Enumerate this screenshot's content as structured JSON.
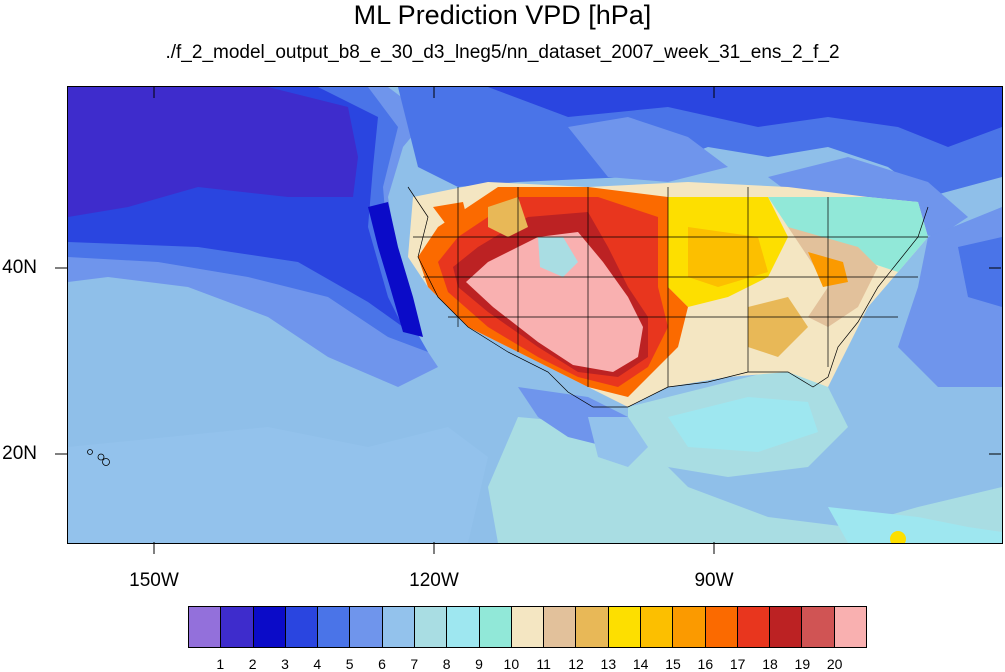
{
  "title": "ML Prediction VPD [hPa]",
  "subtitle": "./f_2_model_output_b8_e_30_d3_lneg5/nn_dataset_2007_week_31_ens_2_f_2",
  "lat_labels": [
    "40N",
    "20N"
  ],
  "lon_labels": [
    "150W",
    "120W",
    "90W"
  ],
  "colorbar": {
    "colors": [
      "#9370db",
      "#3e2ccc",
      "#0b0bc8",
      "#2a45e0",
      "#4a74e8",
      "#6f95ec",
      "#93c2ec",
      "#a9dde3",
      "#9ee7f0",
      "#91e8d8",
      "#f4e6c2",
      "#e2c19b",
      "#e8b857",
      "#fddf00",
      "#fcbf00",
      "#fb9a00",
      "#fb6a00",
      "#e8361e",
      "#bc2223",
      "#d05454",
      "#f9b0b0"
    ],
    "labels": [
      "1",
      "2",
      "3",
      "4",
      "5",
      "6",
      "7",
      "8",
      "9",
      "10",
      "11",
      "12",
      "13",
      "14",
      "15",
      "16",
      "17",
      "18",
      "19",
      "20"
    ]
  },
  "map_data": {
    "variable": "VPD",
    "units": "hPa",
    "region": "United States and surrounding Pacific / Gulf",
    "lon_range": [
      -160,
      -62
    ],
    "lat_range": [
      10,
      58
    ],
    "hotspots": [
      {
        "area": "Southwest US deserts",
        "value": "20+"
      },
      {
        "area": "Great Plains",
        "value": "14-17"
      },
      {
        "area": "Pacific Northwest coast",
        "value": "3-5"
      },
      {
        "area": "Gulf of Mexico",
        "value": "7-9"
      }
    ]
  }
}
